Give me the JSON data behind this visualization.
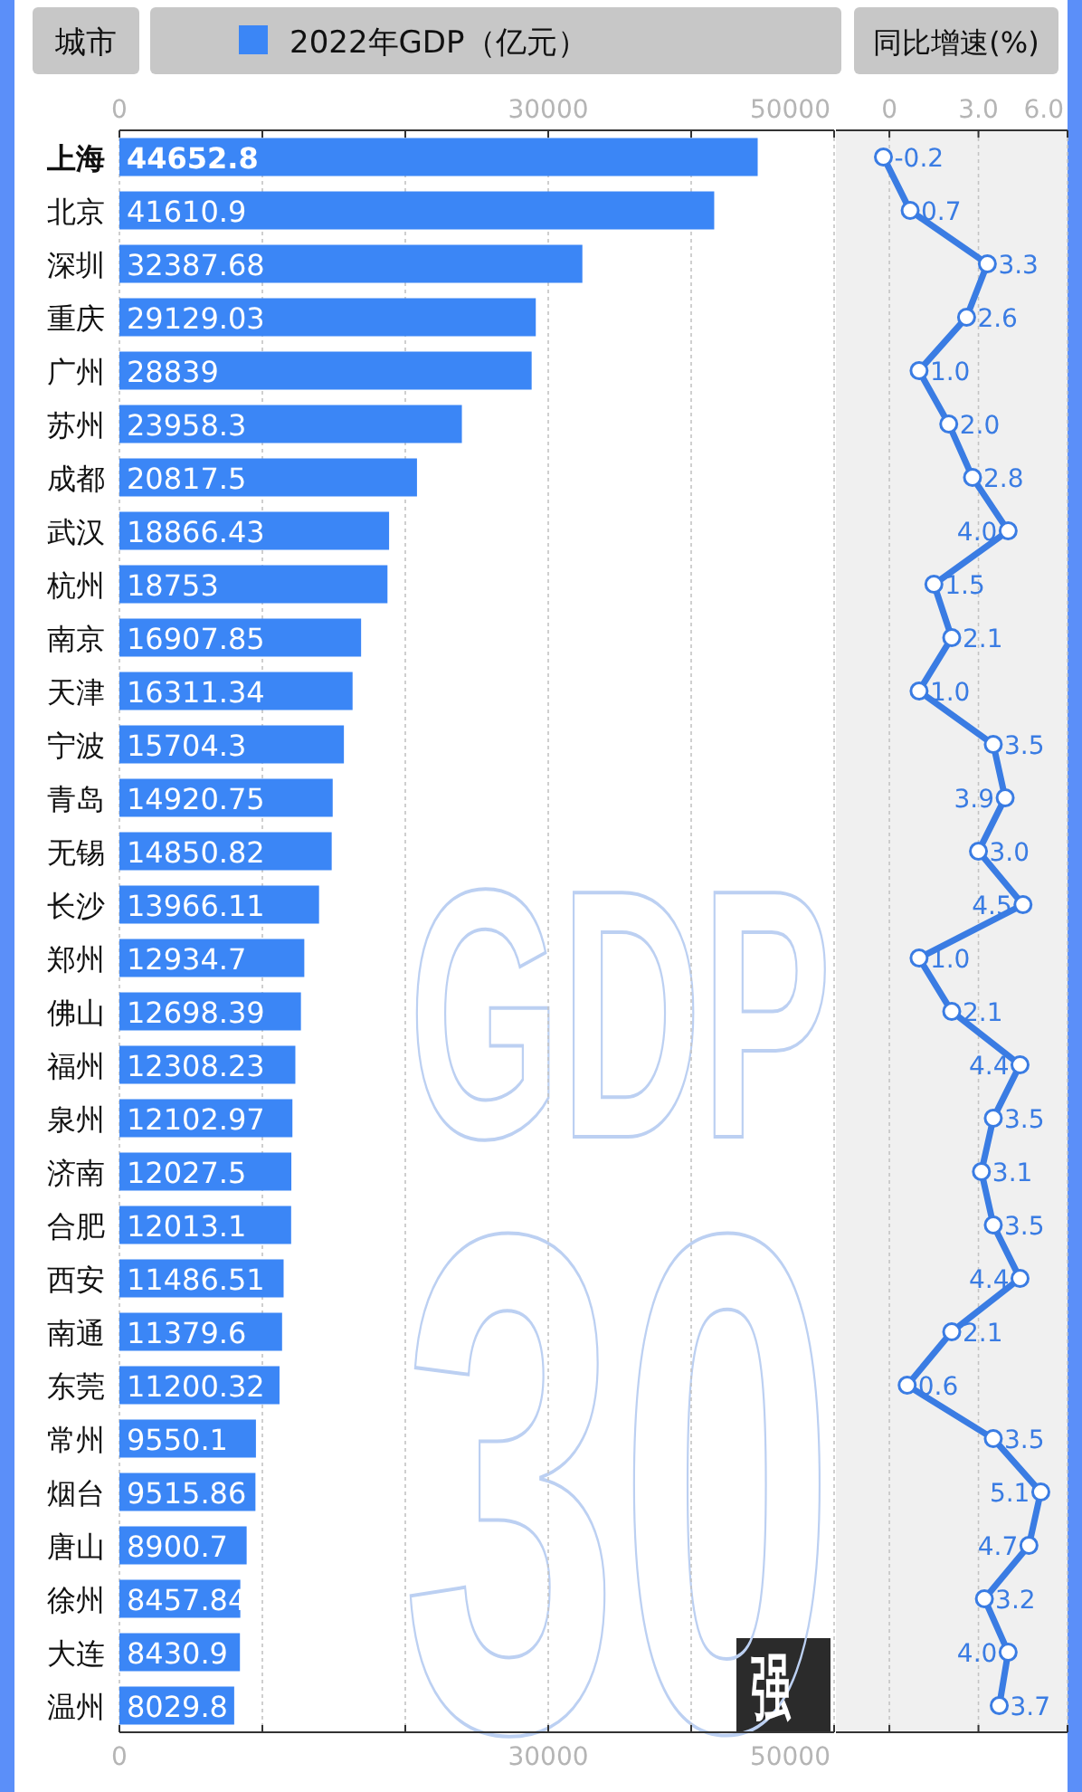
{
  "chart_data": [
    {
      "type": "bar",
      "orientation": "horizontal",
      "title": "GDP30强",
      "ylabel": "城市",
      "legend": "top",
      "data_labels": true,
      "grid": "x",
      "categories": [
        "上海",
        "北京",
        "深圳",
        "重庆",
        "广州",
        "苏州",
        "成都",
        "武汉",
        "杭州",
        "南京",
        "天津",
        "宁波",
        "青岛",
        "无锡",
        "长沙",
        "郑州",
        "佛山",
        "福州",
        "泉州",
        "济南",
        "合肥",
        "西安",
        "南通",
        "东莞",
        "常州",
        "烟台",
        "唐山",
        "徐州",
        "大连",
        "温州"
      ],
      "series": [
        {
          "name": "2022年GDP（亿元）",
          "color": "#3b86f6",
          "values": [
            44652.8,
            41610.9,
            32387.68,
            29129.03,
            28839,
            23958.3,
            20817.5,
            18866.43,
            18753,
            16907.85,
            16311.34,
            15704.3,
            14920.75,
            14850.82,
            13966.11,
            12934.7,
            12698.39,
            12308.23,
            12102.97,
            12027.5,
            12013.1,
            11486.51,
            11379.6,
            11200.32,
            9550.1,
            9515.86,
            8900.7,
            8457.84,
            8430.9,
            8029.8
          ]
        }
      ],
      "xlim": [
        0,
        50000
      ],
      "xticks": [
        0,
        {
          "value": 10000,
          "label": null
        },
        {
          "value": 20000,
          "label": null
        },
        30000,
        {
          "value": 40000,
          "label": null
        },
        50000
      ],
      "x2lim": [
        0,
        50000
      ],
      "x2ticks": [
        0,
        {
          "value": 10000,
          "label": null
        },
        {
          "value": 20000,
          "label": null
        },
        30000,
        {
          "value": 40000,
          "label": null
        },
        50000
      ]
    },
    {
      "type": "line",
      "orientation": "horizontal",
      "x2label": "同比增速(%)",
      "marker": "circle",
      "grid": "x",
      "tick_labels": "x",
      "categories": [
        null,
        null,
        null,
        null,
        null,
        null,
        null,
        null,
        null,
        null,
        null,
        null,
        null,
        null,
        null,
        null,
        null,
        null,
        null,
        null,
        null,
        null,
        null,
        null,
        null,
        null,
        null,
        null,
        null,
        null
      ],
      "series": [
        {
          "color": "#3a7ce3",
          "values": [
            -0.2,
            0.7,
            3.3,
            2.6,
            1.0,
            2.0,
            2.8,
            4.0,
            1.5,
            2.1,
            1.0,
            3.5,
            3.9,
            3.0,
            4.5,
            1.0,
            2.1,
            4.4,
            3.5,
            3.1,
            3.5,
            4.4,
            2.1,
            0.6,
            3.5,
            5.1,
            4.7,
            3.2,
            4.0,
            3.7
          ],
          "value_labels": [
            "-0.2",
            "0.7",
            "3.3",
            "2.6",
            "1.0",
            "2.0",
            "2.8",
            "4.0",
            "1.5",
            "2.1",
            "1.0",
            "3.5",
            "3.9",
            "3.0",
            "4.5",
            "1.0",
            "2.1",
            "4.4",
            "3.5",
            "3.1",
            "3.5",
            "4.4",
            "2.1",
            "0.6",
            "3.5",
            "5.1",
            "4.7",
            "3.2",
            "4.0",
            "3.7"
          ]
        }
      ],
      "x2lim": [
        -1.8,
        6
      ],
      "x2ticks": [
        0,
        {
          "value": 3,
          "label": "3.0"
        },
        {
          "value": 6,
          "label": "6.0"
        }
      ]
    }
  ]
}
